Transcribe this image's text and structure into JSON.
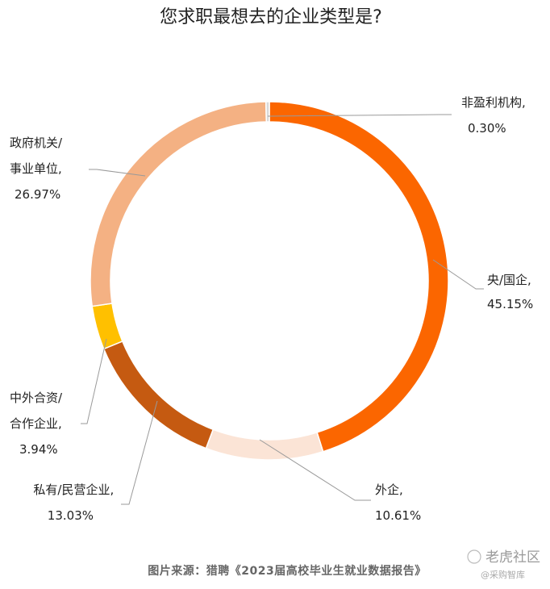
{
  "chart_data": {
    "type": "pie",
    "title": "您求职最想去的企业类型是?",
    "categories": [
      "央/国企",
      "外企",
      "私有/民营企业",
      "中外合资/合作企业",
      "政府机关/事业单位",
      "非盈利机构"
    ],
    "values": [
      45.15,
      10.61,
      13.03,
      3.94,
      26.97,
      0.3
    ],
    "colors": [
      "#fb6600",
      "#fbe4d6",
      "#c55a11",
      "#ffc000",
      "#f4b183",
      "#d9d9d9"
    ],
    "labels": [
      {
        "lines": [
          "央/国企,",
          "45.15%"
        ]
      },
      {
        "lines": [
          "外企,",
          "10.61%"
        ]
      },
      {
        "lines": [
          "私有/民营企业,",
          "13.03%"
        ]
      },
      {
        "lines": [
          "中外合资/",
          "合作企业,",
          "3.94%"
        ]
      },
      {
        "lines": [
          "政府机关/",
          "事业单位,",
          "26.97%"
        ]
      },
      {
        "lines": [
          "非盈利机构,",
          "0.30%"
        ]
      }
    ]
  },
  "source_text": "图片来源：猎聘《2023届高校毕业生就业数据报告》",
  "watermark": {
    "main": "老虎社区",
    "sub": "@采购智库"
  }
}
